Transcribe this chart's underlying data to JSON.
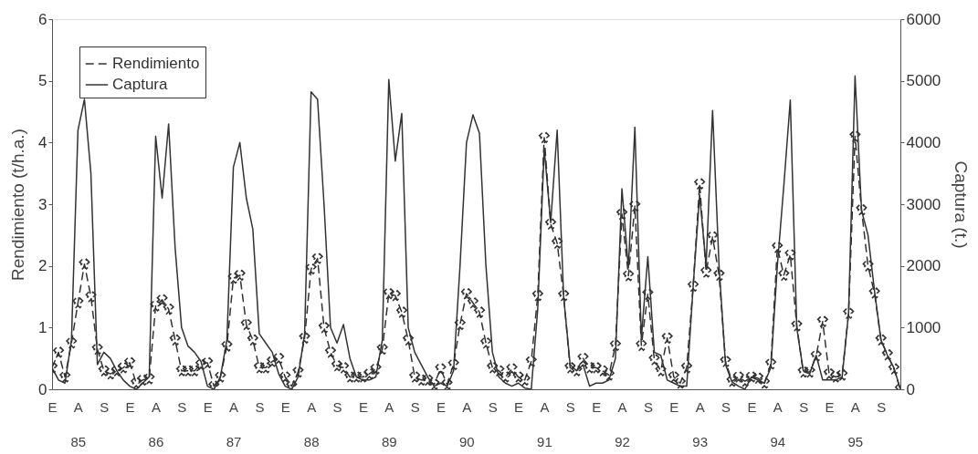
{
  "chart_data": {
    "type": "line",
    "ylabel": "Rendimiento (t/h.a.)",
    "y2label": "Captura (t.)",
    "categories": [
      "E",
      null,
      null,
      null,
      "A\n85",
      null,
      null,
      null,
      "S",
      null,
      null,
      null,
      "E",
      null,
      null,
      null,
      "A\n86",
      null,
      null,
      null,
      "S",
      null,
      null,
      null,
      "E",
      null,
      null,
      null,
      "A\n87",
      null,
      null,
      null,
      "S",
      null,
      null,
      null,
      "E",
      null,
      null,
      null,
      "A\n88",
      null,
      null,
      null,
      "S",
      null,
      null,
      null,
      "E",
      null,
      null,
      null,
      "A\n89",
      null,
      null,
      null,
      "S",
      null,
      null,
      null,
      "E",
      null,
      null,
      null,
      "A\n90",
      null,
      null,
      null,
      "S",
      null,
      null,
      null,
      "E",
      null,
      null,
      null,
      "A\n91",
      null,
      null,
      null,
      "S",
      null,
      null,
      null,
      "E",
      null,
      null,
      null,
      "A\n92",
      null,
      null,
      null,
      "S",
      null,
      null,
      null,
      "E",
      null,
      null,
      null,
      "A\n93",
      null,
      null,
      null,
      "S",
      null,
      null,
      null,
      "E",
      null,
      null,
      null,
      "A\n94",
      null,
      null,
      null,
      "S",
      null,
      null,
      null,
      "E",
      null,
      null,
      null,
      "A\n95",
      null,
      null,
      null,
      "S",
      null,
      null,
      null
    ],
    "series": [
      {
        "name": "Rendimiento",
        "color": "#333333",
        "axis": "y",
        "line_style": "dashed",
        "marker": "cross",
        "values": [
          0.35,
          0.6,
          0.2,
          0.75,
          1.4,
          2.03,
          1.5,
          0.65,
          0.3,
          0.25,
          0.3,
          0.35,
          0.43,
          0.1,
          0.15,
          0.17,
          1.35,
          1.45,
          1.3,
          0.8,
          0.3,
          0.3,
          0.3,
          0.4,
          0.43,
          0.05,
          0.2,
          0.7,
          1.8,
          1.85,
          1.05,
          0.8,
          0.35,
          0.35,
          0.45,
          0.5,
          0.2,
          0.05,
          0.28,
          0.83,
          1.95,
          2.12,
          1.0,
          0.6,
          0.38,
          0.35,
          0.2,
          0.2,
          0.2,
          0.25,
          0.33,
          0.65,
          1.55,
          1.52,
          1.25,
          0.8,
          0.2,
          0.15,
          0.15,
          0.08,
          0.33,
          0.08,
          0.4,
          1.05,
          1.55,
          1.4,
          1.25,
          0.75,
          0.35,
          0.3,
          0.2,
          0.33,
          0.2,
          0.15,
          0.45,
          1.52,
          4.08,
          2.68,
          2.37,
          1.52,
          0.35,
          0.3,
          0.5,
          0.35,
          0.35,
          0.3,
          0.23,
          0.71,
          2.84,
          1.84,
          2.97,
          0.71,
          1.54,
          0.48,
          0.3,
          0.83,
          0.2,
          0.1,
          0.35,
          1.67,
          3.33,
          1.9,
          2.47,
          1.85,
          0.45,
          0.13,
          0.2,
          0.13,
          0.2,
          0.18,
          0.1,
          0.41,
          2.3,
          1.85,
          2.18,
          1.03,
          0.28,
          0.28,
          0.54,
          1.1,
          0.25,
          0.2,
          0.23,
          1.23,
          4.1,
          2.91,
          2.0,
          1.56,
          0.8,
          0.56,
          0.33,
          0
        ]
      },
      {
        "name": "Captura",
        "color": "#333333",
        "axis": "y2",
        "line_style": "solid",
        "marker": "none",
        "values": [
          350,
          150,
          100,
          800,
          4200,
          4700,
          3500,
          400,
          600,
          500,
          300,
          150,
          50,
          0,
          100,
          200,
          4100,
          3100,
          4300,
          2300,
          1000,
          700,
          600,
          450,
          50,
          0,
          200,
          800,
          3600,
          4000,
          3100,
          2600,
          900,
          750,
          600,
          250,
          50,
          0,
          200,
          900,
          4820,
          4700,
          3000,
          1000,
          750,
          1050,
          500,
          200,
          150,
          150,
          200,
          800,
          5020,
          3700,
          4470,
          1000,
          600,
          400,
          200,
          50,
          100,
          50,
          300,
          2000,
          4000,
          4450,
          4150,
          2000,
          600,
          200,
          100,
          50,
          100,
          20,
          0,
          1300,
          3900,
          2700,
          4200,
          1500,
          400,
          300,
          400,
          50,
          100,
          100,
          150,
          500,
          3250,
          1970,
          4250,
          830,
          2150,
          600,
          550,
          150,
          100,
          50,
          50,
          1670,
          3150,
          2000,
          4520,
          2000,
          400,
          120,
          50,
          0,
          200,
          150,
          100,
          350,
          2000,
          3300,
          4690,
          1000,
          300,
          250,
          550,
          150,
          150,
          150,
          200,
          1230,
          5080,
          2900,
          2500,
          1600,
          800,
          550,
          350,
          0
        ]
      }
    ],
    "ylim": [
      0,
      6
    ],
    "yticks": [
      0,
      1,
      2,
      3,
      4,
      5,
      6
    ],
    "y2lim": [
      0,
      6000
    ],
    "y2ticks": [
      0,
      1000,
      2000,
      3000,
      4000,
      5000,
      6000
    ],
    "grid": false,
    "legend": "top left"
  }
}
